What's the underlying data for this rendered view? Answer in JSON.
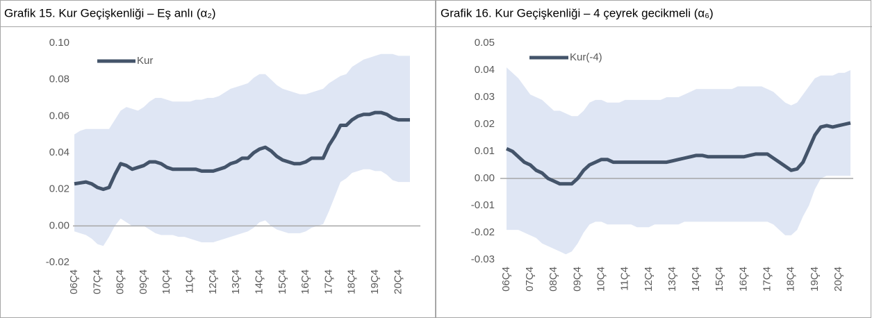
{
  "chart_data": [
    {
      "type": "line_band",
      "title": "Grafik 15. Kur Geçişkenliği – Eş anlı (α₂)",
      "categories": [
        "06Ç4",
        null,
        null,
        null,
        "07Ç4",
        null,
        null,
        null,
        "08Ç4",
        null,
        null,
        null,
        "09Ç4",
        null,
        null,
        null,
        "10Ç4",
        null,
        null,
        null,
        "11Ç4",
        null,
        null,
        null,
        "12Ç4",
        null,
        null,
        null,
        "13Ç4",
        null,
        null,
        null,
        "14Ç4",
        null,
        null,
        null,
        "15Ç4",
        null,
        null,
        null,
        "16Ç4",
        null,
        null,
        null,
        "17Ç4",
        null,
        null,
        null,
        "18Ç4",
        null,
        null,
        null,
        "19Ç4",
        null,
        null,
        null,
        "20Ç4",
        null,
        null
      ],
      "series": [
        {
          "name": "Kur",
          "color": "#44546a",
          "values": [
            0.023,
            0.0235,
            0.024,
            0.023,
            0.021,
            0.02,
            0.021,
            0.028,
            0.034,
            0.033,
            0.031,
            0.032,
            0.033,
            0.035,
            0.035,
            0.034,
            0.032,
            0.031,
            0.031,
            0.031,
            0.031,
            0.031,
            0.03,
            0.03,
            0.03,
            0.031,
            0.032,
            0.034,
            0.035,
            0.037,
            0.037,
            0.04,
            0.042,
            0.043,
            0.041,
            0.038,
            0.036,
            0.035,
            0.034,
            0.034,
            0.035,
            0.037,
            0.037,
            0.037,
            0.044,
            0.049,
            0.055,
            0.055,
            0.058,
            0.06,
            0.061,
            0.061,
            0.062,
            0.062,
            0.061,
            0.059,
            0.058,
            0.058,
            0.058
          ]
        }
      ],
      "band_color": "#dfe6f4",
      "band_upper": [
        0.05,
        0.052,
        0.053,
        0.053,
        0.053,
        0.053,
        0.053,
        0.058,
        0.063,
        0.065,
        0.064,
        0.063,
        0.065,
        0.068,
        0.07,
        0.07,
        0.069,
        0.068,
        0.068,
        0.068,
        0.068,
        0.069,
        0.069,
        0.07,
        0.07,
        0.071,
        0.073,
        0.075,
        0.076,
        0.077,
        0.078,
        0.081,
        0.083,
        0.083,
        0.08,
        0.077,
        0.075,
        0.074,
        0.073,
        0.072,
        0.072,
        0.073,
        0.074,
        0.075,
        0.078,
        0.08,
        0.082,
        0.083,
        0.087,
        0.089,
        0.091,
        0.092,
        0.093,
        0.094,
        0.094,
        0.094,
        0.093,
        0.093,
        0.093
      ],
      "band_lower": [
        -0.003,
        -0.004,
        -0.005,
        -0.007,
        -0.01,
        -0.011,
        -0.006,
        0.0,
        0.004,
        0.002,
        0.0,
        0.0,
        0.0,
        -0.002,
        -0.004,
        -0.005,
        -0.005,
        -0.005,
        -0.006,
        -0.006,
        -0.007,
        -0.008,
        -0.009,
        -0.009,
        -0.009,
        -0.008,
        -0.007,
        -0.006,
        -0.005,
        -0.004,
        -0.003,
        -0.001,
        0.002,
        0.003,
        0.0,
        -0.002,
        -0.003,
        -0.004,
        -0.004,
        -0.004,
        -0.003,
        -0.001,
        0.0,
        0.001,
        0.008,
        0.016,
        0.024,
        0.026,
        0.029,
        0.03,
        0.031,
        0.031,
        0.03,
        0.03,
        0.028,
        0.025,
        0.024,
        0.024,
        0.024
      ],
      "ylim": [
        -0.02,
        0.1
      ],
      "yticks": [
        -0.02,
        {
          "value": 0,
          "label": "0.00"
        },
        0.02,
        0.04,
        0.06,
        0.08,
        {
          "value": 0.1,
          "label": "0.10"
        }
      ]
    },
    {
      "type": "line_band",
      "title": "Grafik 16. Kur Geçişkenliği – 4 çeyrek gecikmeli (α₆)",
      "categories": [
        "06Ç4",
        null,
        null,
        null,
        "07Ç4",
        null,
        null,
        null,
        "08Ç4",
        null,
        null,
        null,
        "09Ç4",
        null,
        null,
        null,
        "10Ç4",
        null,
        null,
        null,
        "11Ç4",
        null,
        null,
        null,
        "12Ç4",
        null,
        null,
        null,
        "13Ç4",
        null,
        null,
        null,
        "14Ç4",
        null,
        null,
        null,
        "15Ç4",
        null,
        null,
        null,
        "16Ç4",
        null,
        null,
        null,
        "17Ç4",
        null,
        null,
        null,
        "18Ç4",
        null,
        null,
        null,
        "19Ç4",
        null,
        null,
        null,
        "20Ç4",
        null,
        null
      ],
      "series": [
        {
          "name": "Kur(-4)",
          "color": "#44546a",
          "values": [
            0.011,
            0.01,
            0.008,
            0.006,
            0.005,
            0.003,
            0.002,
            0.0,
            -0.001,
            -0.002,
            -0.002,
            -0.002,
            0.0,
            0.003,
            0.005,
            0.006,
            0.007,
            0.007,
            0.006,
            0.006,
            0.006,
            0.006,
            0.006,
            0.006,
            0.006,
            0.006,
            0.006,
            0.006,
            0.0065,
            0.007,
            0.0075,
            0.008,
            0.0085,
            0.0085,
            0.008,
            0.008,
            0.008,
            0.008,
            0.008,
            0.008,
            0.008,
            0.0085,
            0.009,
            0.009,
            0.009,
            0.0075,
            0.006,
            0.0045,
            0.003,
            0.0035,
            0.006,
            0.011,
            0.016,
            0.019,
            0.0195,
            0.019,
            0.0195,
            0.02,
            0.0205
          ]
        }
      ],
      "band_color": "#dfe6f4",
      "band_upper": [
        0.041,
        0.039,
        0.037,
        0.034,
        0.031,
        0.03,
        0.029,
        0.027,
        0.025,
        0.025,
        0.024,
        0.023,
        0.023,
        0.025,
        0.028,
        0.029,
        0.029,
        0.028,
        0.028,
        0.028,
        0.029,
        0.029,
        0.029,
        0.029,
        0.029,
        0.029,
        0.029,
        0.03,
        0.03,
        0.03,
        0.031,
        0.032,
        0.033,
        0.033,
        0.033,
        0.033,
        0.033,
        0.033,
        0.033,
        0.034,
        0.034,
        0.034,
        0.034,
        0.034,
        0.033,
        0.032,
        0.03,
        0.028,
        0.027,
        0.028,
        0.031,
        0.034,
        0.037,
        0.038,
        0.038,
        0.038,
        0.039,
        0.039,
        0.04
      ],
      "band_lower": [
        -0.019,
        -0.019,
        -0.019,
        -0.02,
        -0.021,
        -0.022,
        -0.024,
        -0.025,
        -0.026,
        -0.027,
        -0.028,
        -0.027,
        -0.024,
        -0.02,
        -0.017,
        -0.016,
        -0.016,
        -0.017,
        -0.017,
        -0.017,
        -0.017,
        -0.017,
        -0.018,
        -0.018,
        -0.018,
        -0.017,
        -0.017,
        -0.017,
        -0.017,
        -0.017,
        -0.016,
        -0.016,
        -0.016,
        -0.016,
        -0.016,
        -0.016,
        -0.016,
        -0.016,
        -0.016,
        -0.016,
        -0.016,
        -0.016,
        -0.016,
        -0.016,
        -0.016,
        -0.017,
        -0.019,
        -0.021,
        -0.021,
        -0.019,
        -0.014,
        -0.01,
        -0.004,
        0.0,
        0.001,
        0.001,
        0.001,
        0.001,
        0.001
      ],
      "ylim": [
        -0.03,
        0.05
      ],
      "yticks": [
        -0.03,
        -0.02,
        -0.01,
        {
          "value": 0,
          "label": "0.00"
        },
        0.01,
        0.02,
        0.03,
        0.04,
        0.05
      ]
    }
  ]
}
